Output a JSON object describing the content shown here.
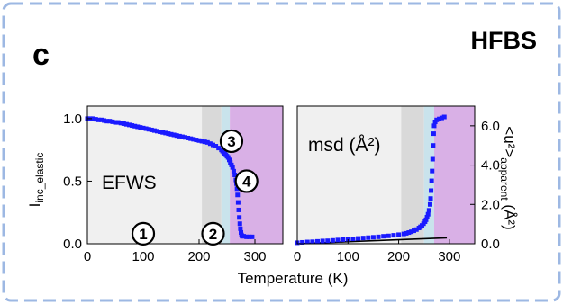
{
  "figure": {
    "panel_label": "c",
    "instrument": "HFBS",
    "frame_color": "#9db8e3",
    "xlabel": "Temperature (K)"
  },
  "colors": {
    "data": "#1a1aff",
    "region_1": "#f0f0f0",
    "region_2": "#d9d9d9",
    "region_3": "#c9e3ec",
    "region_4": "#d9b0e6",
    "fit_line": "#000000"
  },
  "chart_data": [
    {
      "type": "scatter",
      "panel": "left",
      "title": "",
      "ylabel": "I",
      "ylabel_subscript": "inc_elastic",
      "annotation": "EFWS",
      "xlim": [
        0,
        350
      ],
      "ylim": [
        0,
        1.1
      ],
      "x_ticks": [
        0,
        100,
        200,
        300
      ],
      "x_tick_labels": [
        "0",
        "100",
        "200",
        "300"
      ],
      "y_ticks": [
        0.0,
        0.5,
        1.0
      ],
      "y_tick_labels": [
        "0.0",
        "0.5",
        "1.0"
      ],
      "regions": [
        {
          "label": "1",
          "x_range": [
            0,
            205
          ],
          "label_pos": [
            100,
            0.08
          ]
        },
        {
          "label": "2",
          "x_range": [
            205,
            240
          ],
          "label_pos": [
            225,
            0.08
          ]
        },
        {
          "label": "3",
          "x_range": [
            240,
            255
          ],
          "label_pos": [
            258,
            0.82
          ]
        },
        {
          "label": "4",
          "x_range": [
            255,
            350
          ],
          "label_pos": [
            285,
            0.5
          ]
        }
      ],
      "series": [
        {
          "marker": "square",
          "x": [
            0,
            5,
            10,
            15,
            20,
            25,
            30,
            35,
            40,
            45,
            50,
            55,
            60,
            65,
            70,
            75,
            80,
            85,
            90,
            95,
            100,
            105,
            110,
            115,
            120,
            125,
            130,
            135,
            140,
            145,
            150,
            155,
            160,
            165,
            170,
            175,
            180,
            185,
            190,
            195,
            200,
            205,
            210,
            215,
            220,
            225,
            230,
            235,
            240,
            242,
            244,
            246,
            248,
            250,
            252,
            254,
            256,
            258,
            260,
            262,
            264,
            266,
            267,
            268,
            269,
            270,
            271,
            272,
            273,
            274,
            275,
            276,
            277,
            280,
            285,
            290,
            295
          ],
          "y": [
            1.0,
            1.0,
            1.0,
            0.995,
            0.99,
            0.99,
            0.985,
            0.98,
            0.98,
            0.975,
            0.97,
            0.97,
            0.965,
            0.96,
            0.955,
            0.95,
            0.945,
            0.94,
            0.935,
            0.93,
            0.925,
            0.92,
            0.915,
            0.91,
            0.905,
            0.9,
            0.895,
            0.89,
            0.885,
            0.88,
            0.875,
            0.87,
            0.865,
            0.86,
            0.855,
            0.85,
            0.845,
            0.84,
            0.835,
            0.83,
            0.825,
            0.82,
            0.815,
            0.81,
            0.8,
            0.79,
            0.78,
            0.765,
            0.75,
            0.74,
            0.73,
            0.72,
            0.71,
            0.7,
            0.69,
            0.67,
            0.65,
            0.63,
            0.61,
            0.58,
            0.55,
            0.51,
            0.48,
            0.44,
            0.39,
            0.33,
            0.27,
            0.21,
            0.16,
            0.12,
            0.09,
            0.07,
            0.06,
            0.06,
            0.055,
            0.055,
            0.055
          ]
        }
      ]
    },
    {
      "type": "scatter",
      "panel": "right",
      "title": "",
      "annotation": "msd (Å²)",
      "ylabel": "<u²>",
      "ylabel_subscript": "apparent",
      "ylabel_unit": "(Å²)",
      "xlim": [
        0,
        350
      ],
      "ylim": [
        0,
        7
      ],
      "x_ticks": [
        0,
        100,
        200,
        300
      ],
      "x_tick_labels": [
        "0",
        "100",
        "200",
        "300"
      ],
      "y_ticks": [
        0.0,
        2.0,
        4.0,
        6.0
      ],
      "y_tick_labels": [
        "0.0",
        "2.0",
        "4.0",
        "6.0"
      ],
      "y_axis_side": "right",
      "regions": [
        {
          "x_range": [
            0,
            205
          ]
        },
        {
          "x_range": [
            205,
            250
          ]
        },
        {
          "x_range": [
            250,
            270
          ]
        },
        {
          "x_range": [
            270,
            350
          ]
        }
      ],
      "series": [
        {
          "marker": "square",
          "x": [
            0,
            10,
            20,
            30,
            40,
            50,
            60,
            70,
            80,
            90,
            100,
            110,
            120,
            130,
            140,
            150,
            160,
            170,
            180,
            190,
            200,
            210,
            215,
            220,
            225,
            230,
            235,
            240,
            243,
            246,
            249,
            252,
            254,
            256,
            258,
            260,
            262,
            263,
            264,
            265,
            266,
            267,
            268,
            269,
            270,
            272,
            275,
            280,
            285,
            290
          ],
          "y": [
            0.05,
            0.07,
            0.09,
            0.1,
            0.12,
            0.14,
            0.15,
            0.17,
            0.19,
            0.21,
            0.23,
            0.25,
            0.27,
            0.29,
            0.31,
            0.33,
            0.35,
            0.38,
            0.4,
            0.43,
            0.46,
            0.5,
            0.53,
            0.57,
            0.61,
            0.66,
            0.72,
            0.8,
            0.86,
            0.93,
            1.02,
            1.12,
            1.22,
            1.35,
            1.5,
            1.7,
            2.0,
            2.3,
            2.7,
            3.2,
            3.7,
            4.3,
            5.0,
            5.6,
            6.0,
            6.2,
            6.3,
            6.35,
            6.4,
            6.45
          ]
        }
      ],
      "fit_line": {
        "x": [
          0,
          295
        ],
        "y": [
          0.0,
          0.3
        ]
      }
    }
  ]
}
